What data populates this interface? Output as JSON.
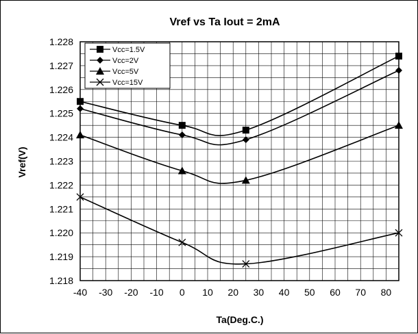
{
  "chart_data": {
    "type": "line",
    "title": "Vref vs Ta Iout = 2mA",
    "xlabel": "Ta(Deg.C.)",
    "ylabel": "Vref(V)",
    "xlim": [
      -40,
      85
    ],
    "ylim": [
      1.218,
      1.228
    ],
    "x_ticks": [
      "-40",
      "-30",
      "-20",
      "-10",
      "0",
      "10",
      "20",
      "30",
      "40",
      "50",
      "60",
      "70",
      "80"
    ],
    "y_ticks": [
      "1.218",
      "1.219",
      "1.220",
      "1.221",
      "1.222",
      "1.223",
      "1.224",
      "1.225",
      "1.226",
      "1.227",
      "1.228"
    ],
    "grid": true,
    "legend_position": "top-left",
    "x": [
      -40,
      0,
      25,
      85
    ],
    "series": [
      {
        "name": "Vcc=1.5V",
        "marker": "square",
        "values": [
          1.2255,
          1.2245,
          1.2243,
          1.2274
        ]
      },
      {
        "name": "Vcc=2V",
        "marker": "diamond",
        "values": [
          1.2252,
          1.2241,
          1.2239,
          1.2268
        ]
      },
      {
        "name": "Vcc=5V",
        "marker": "triangle",
        "values": [
          1.2241,
          1.2226,
          1.2222,
          1.2245
        ]
      },
      {
        "name": "Vcc=15V",
        "marker": "x",
        "values": [
          1.2215,
          1.2196,
          1.2187,
          1.22
        ]
      }
    ]
  }
}
